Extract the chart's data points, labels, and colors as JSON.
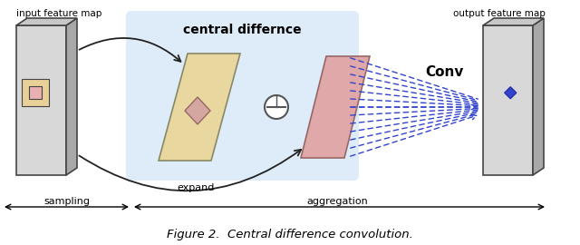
{
  "title": "Figure 2.  Central difference convolution.",
  "label_input": "input feature map",
  "label_output": "output feature map",
  "label_central": "central differnce",
  "label_expand": "expand",
  "label_conv": "Conv",
  "label_sampling": "sampling",
  "label_aggregation": "aggregation",
  "bg_color": "#ffffff",
  "panel_gray": "#d8d8d8",
  "panel_side": "#a8a8a8",
  "panel_edge": "#444444",
  "yellow_face": "#e8d8a0",
  "yellow_inner": "#d4a8a0",
  "pink_face": "#e0a8a8",
  "blue_sq": "#3344cc",
  "blue_bg": "#d0e4f8",
  "inp_inner_outer": "#e8d098",
  "inp_inner_mid": "#e0b898",
  "inp_inner_core": "#e8b0b0",
  "arrow_black": "#222222",
  "dashed_blue": "#3344cc"
}
